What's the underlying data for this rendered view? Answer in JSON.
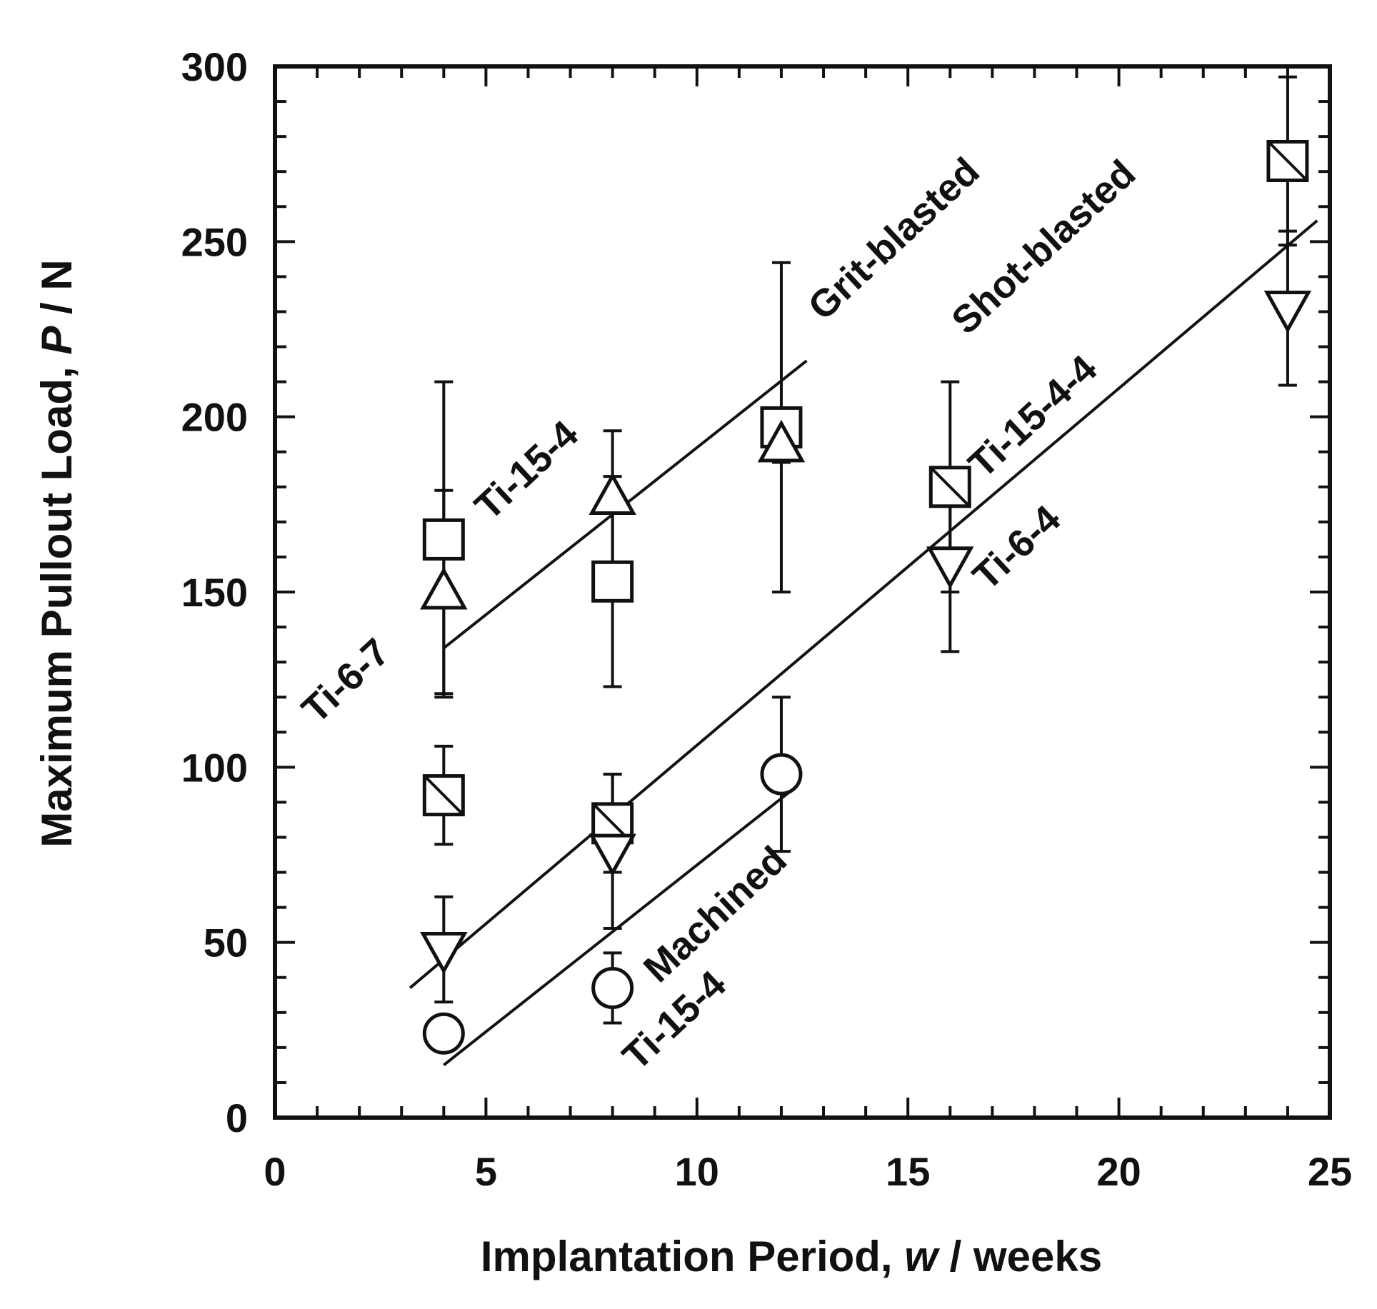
{
  "chart_data": {
    "type": "scatter",
    "title": "",
    "xlabel": "Implantation Period, ",
    "xlabel_var": "w",
    "xlabel_unit": " / weeks",
    "ylabel": "Maximum Pullout Load, ",
    "ylabel_var": "P",
    "ylabel_unit": " / N",
    "xlim": [
      0,
      25
    ],
    "ylim": [
      0,
      300
    ],
    "xticks": [
      0,
      5,
      10,
      15,
      20,
      25
    ],
    "yticks": [
      0,
      50,
      100,
      150,
      200,
      250,
      300
    ],
    "x_minor_step": 1,
    "y_minor_step": 10,
    "grid": false,
    "series": [
      {
        "name": "Grit-blasted Ti-15-4",
        "marker": "square",
        "points": [
          {
            "x": 4,
            "y": 165,
            "err_low": 45,
            "err_high": 45
          },
          {
            "x": 8,
            "y": 153,
            "err_low": 30,
            "err_high": 30
          },
          {
            "x": 12,
            "y": 197,
            "err_low": 47,
            "err_high": 47
          }
        ]
      },
      {
        "name": "Grit-blasted Ti-6-7",
        "marker": "triangle-up",
        "points": [
          {
            "x": 4,
            "y": 150,
            "err_low": 29,
            "err_high": 29
          },
          {
            "x": 8,
            "y": 177,
            "err_low": 19,
            "err_high": 19
          },
          {
            "x": 12,
            "y": 192,
            "err_low": 5,
            "err_high": 5
          }
        ]
      },
      {
        "name": "Shot-blasted Ti-15-4-4",
        "marker": "square-slash",
        "points": [
          {
            "x": 4,
            "y": 92,
            "err_low": 14,
            "err_high": 14
          },
          {
            "x": 8,
            "y": 84,
            "err_low": 14,
            "err_high": 14
          },
          {
            "x": 16,
            "y": 180,
            "err_low": 30,
            "err_high": 30
          },
          {
            "x": 24,
            "y": 273,
            "err_low": 24,
            "err_high": 24
          }
        ]
      },
      {
        "name": "Shot-blasted Ti-6-4",
        "marker": "triangle-down",
        "points": [
          {
            "x": 4,
            "y": 48,
            "err_low": 15,
            "err_high": 15
          },
          {
            "x": 8,
            "y": 76,
            "err_low": 22,
            "err_high": 22
          },
          {
            "x": 16,
            "y": 158,
            "err_low": 25,
            "err_high": 25
          },
          {
            "x": 24,
            "y": 231,
            "err_low": 22,
            "err_high": 22
          }
        ]
      },
      {
        "name": "Machined Ti-15-4",
        "marker": "circle",
        "points": [
          {
            "x": 4,
            "y": 24,
            "err_low": 0,
            "err_high": 0
          },
          {
            "x": 8,
            "y": 37,
            "err_low": 10,
            "err_high": 10
          },
          {
            "x": 12,
            "y": 98,
            "err_low": 22,
            "err_high": 22
          }
        ]
      }
    ],
    "trend_lines": [
      {
        "name": "Grit-blasted trend",
        "x": [
          4,
          12.6
        ],
        "y": [
          134,
          216
        ]
      },
      {
        "name": "Shot-blasted trend",
        "x": [
          3.2,
          24.7
        ],
        "y": [
          37,
          256
        ]
      },
      {
        "name": "Machined trend",
        "x": [
          4,
          12.2
        ],
        "y": [
          15,
          93
        ]
      }
    ],
    "annotations": [
      {
        "text": "Grit-blasted",
        "x": 13.0,
        "y": 227,
        "angle": -43
      },
      {
        "text": "Ti-15-4",
        "x": 5.1,
        "y": 170,
        "angle": -43
      },
      {
        "text": "Ti-6-7",
        "x": 1.0,
        "y": 112,
        "angle": -43
      },
      {
        "text": "Shot-blasted",
        "x": 16.4,
        "y": 223,
        "angle": -43
      },
      {
        "text": "Ti-15-4-4",
        "x": 16.8,
        "y": 182,
        "angle": -43
      },
      {
        "text": "Ti-6-4",
        "x": 16.9,
        "y": 150,
        "angle": -43
      },
      {
        "text": "Machined",
        "x": 9.1,
        "y": 38,
        "angle": -43
      },
      {
        "text": "Ti-15-4",
        "x": 8.6,
        "y": 13,
        "angle": -43
      }
    ]
  }
}
